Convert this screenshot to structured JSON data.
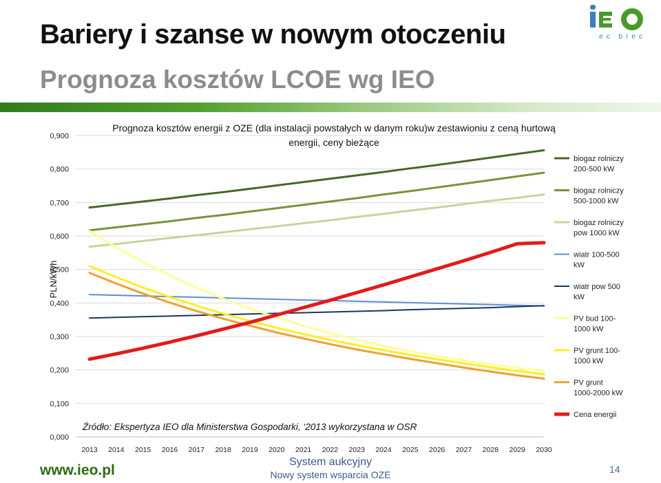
{
  "slide": {
    "title": "Bariery i szanse w nowym otoczeniu",
    "subtitle": "Prognoza kosztów LCOE wg IEO",
    "logo_text": "IEO",
    "logo_tagline": "ec brec",
    "footer_url": "www.ieo.pl",
    "footer_line1": "System aukcyjny",
    "footer_line2": "Nowy system wsparcia OZE",
    "page_number": "14"
  },
  "colors": {
    "brand_green": "#2c6a12",
    "band_start": "#2f7d1e",
    "logo_blue": "#3a7fc0"
  },
  "chart_data": {
    "type": "line",
    "title": "Prognoza kosztów energii z OZE (dla instalacji powstałych w danym roku)w  zestawioniu z ceną hurtową",
    "title_line2": "energii, ceny bieżące",
    "ylabel": "PLN/kWh",
    "xlabel": "",
    "ylim": [
      0,
      0.9
    ],
    "yticks": [
      "0,000",
      "0,100",
      "0,200",
      "0,300",
      "0,400",
      "0,500",
      "0,600",
      "0,700",
      "0,800",
      "0,900"
    ],
    "grid": true,
    "legend_position": "right",
    "x": [
      "2013",
      "2014",
      "2015",
      "2016",
      "2017",
      "2018",
      "2019",
      "2020",
      "2021",
      "2022",
      "2023",
      "2024",
      "2025",
      "2026",
      "2027",
      "2028",
      "2029",
      "2030"
    ],
    "annotation": "Źródło: Ekspertyza IEO dla Ministerstwa Gospodarki, ‘2013 wykorzystana w OSR",
    "series": [
      {
        "name": "biogaz rolniczy 200-500 kW",
        "legend_lines": [
          "biogaz rolniczy",
          "200-500 kW"
        ],
        "color": "#4a6627",
        "width": 3,
        "values": [
          0.685,
          0.694,
          0.703,
          0.712,
          0.722,
          0.731,
          0.741,
          0.751,
          0.761,
          0.771,
          0.781,
          0.791,
          0.802,
          0.812,
          0.823,
          0.834,
          0.845,
          0.856
        ]
      },
      {
        "name": "biogaz rolniczy 500-1000 kW",
        "legend_lines": [
          "biogaz rolniczy",
          "500-1000 kW"
        ],
        "color": "#77933c",
        "width": 3,
        "values": [
          0.617,
          0.626,
          0.635,
          0.644,
          0.654,
          0.663,
          0.673,
          0.683,
          0.693,
          0.703,
          0.713,
          0.724,
          0.734,
          0.745,
          0.756,
          0.767,
          0.778,
          0.789
        ]
      },
      {
        "name": "biogaz rolniczy pow 1000 kW",
        "legend_lines": [
          "biogaz rolniczy",
          "pow 1000 kW"
        ],
        "color": "#c3d69b",
        "width": 3,
        "values": [
          0.568,
          0.576,
          0.585,
          0.594,
          0.602,
          0.611,
          0.62,
          0.629,
          0.638,
          0.647,
          0.657,
          0.666,
          0.676,
          0.685,
          0.695,
          0.705,
          0.714,
          0.724
        ]
      },
      {
        "name": "wiatr 100-500 kW",
        "legend_lines": [
          "wiatr 100-500",
          "kW"
        ],
        "color": "#5b8fd0",
        "width": 2,
        "values": [
          0.425,
          0.423,
          0.421,
          0.419,
          0.417,
          0.415,
          0.413,
          0.411,
          0.409,
          0.407,
          0.405,
          0.403,
          0.401,
          0.399,
          0.397,
          0.395,
          0.393,
          0.391
        ]
      },
      {
        "name": "wiatr pow 500 kW",
        "legend_lines": [
          "wiatr pow 500",
          "kW"
        ],
        "color": "#17375e",
        "width": 2,
        "values": [
          0.355,
          0.357,
          0.359,
          0.361,
          0.363,
          0.365,
          0.367,
          0.369,
          0.371,
          0.373,
          0.375,
          0.377,
          0.38,
          0.382,
          0.384,
          0.386,
          0.389,
          0.392
        ]
      },
      {
        "name": "PV bud 100-1000 kW",
        "legend_lines": [
          "PV bud 100-",
          "1000 kW"
        ],
        "color": "#ffff99",
        "width": 3,
        "values": [
          0.615,
          0.566,
          0.522,
          0.482,
          0.446,
          0.413,
          0.383,
          0.357,
          0.332,
          0.31,
          0.29,
          0.272,
          0.256,
          0.241,
          0.228,
          0.217,
          0.206,
          0.197
        ]
      },
      {
        "name": "PV grunt 100-1000 kW",
        "legend_lines": [
          "PV grunt 100-",
          "1000 kW"
        ],
        "color": "#ffee22",
        "width": 3,
        "values": [
          0.51,
          0.477,
          0.446,
          0.418,
          0.392,
          0.368,
          0.346,
          0.326,
          0.307,
          0.29,
          0.274,
          0.259,
          0.245,
          0.232,
          0.22,
          0.208,
          0.197,
          0.187
        ]
      },
      {
        "name": "PV grunt 1000-2000 kW",
        "legend_lines": [
          "PV grunt",
          "1000-2000 kW"
        ],
        "color": "#f0a030",
        "width": 3,
        "values": [
          0.49,
          0.458,
          0.428,
          0.401,
          0.376,
          0.353,
          0.332,
          0.312,
          0.294,
          0.277,
          0.261,
          0.247,
          0.233,
          0.22,
          0.207,
          0.195,
          0.184,
          0.174
        ]
      },
      {
        "name": "Cena energii",
        "legend_lines": [
          "Cena energii"
        ],
        "color": "#e31b1b",
        "width": 5,
        "values": [
          0.232,
          0.248,
          0.265,
          0.283,
          0.302,
          0.322,
          0.342,
          0.364,
          0.386,
          0.408,
          0.431,
          0.454,
          0.478,
          0.502,
          0.526,
          0.551,
          0.577,
          0.58
        ]
      }
    ]
  }
}
